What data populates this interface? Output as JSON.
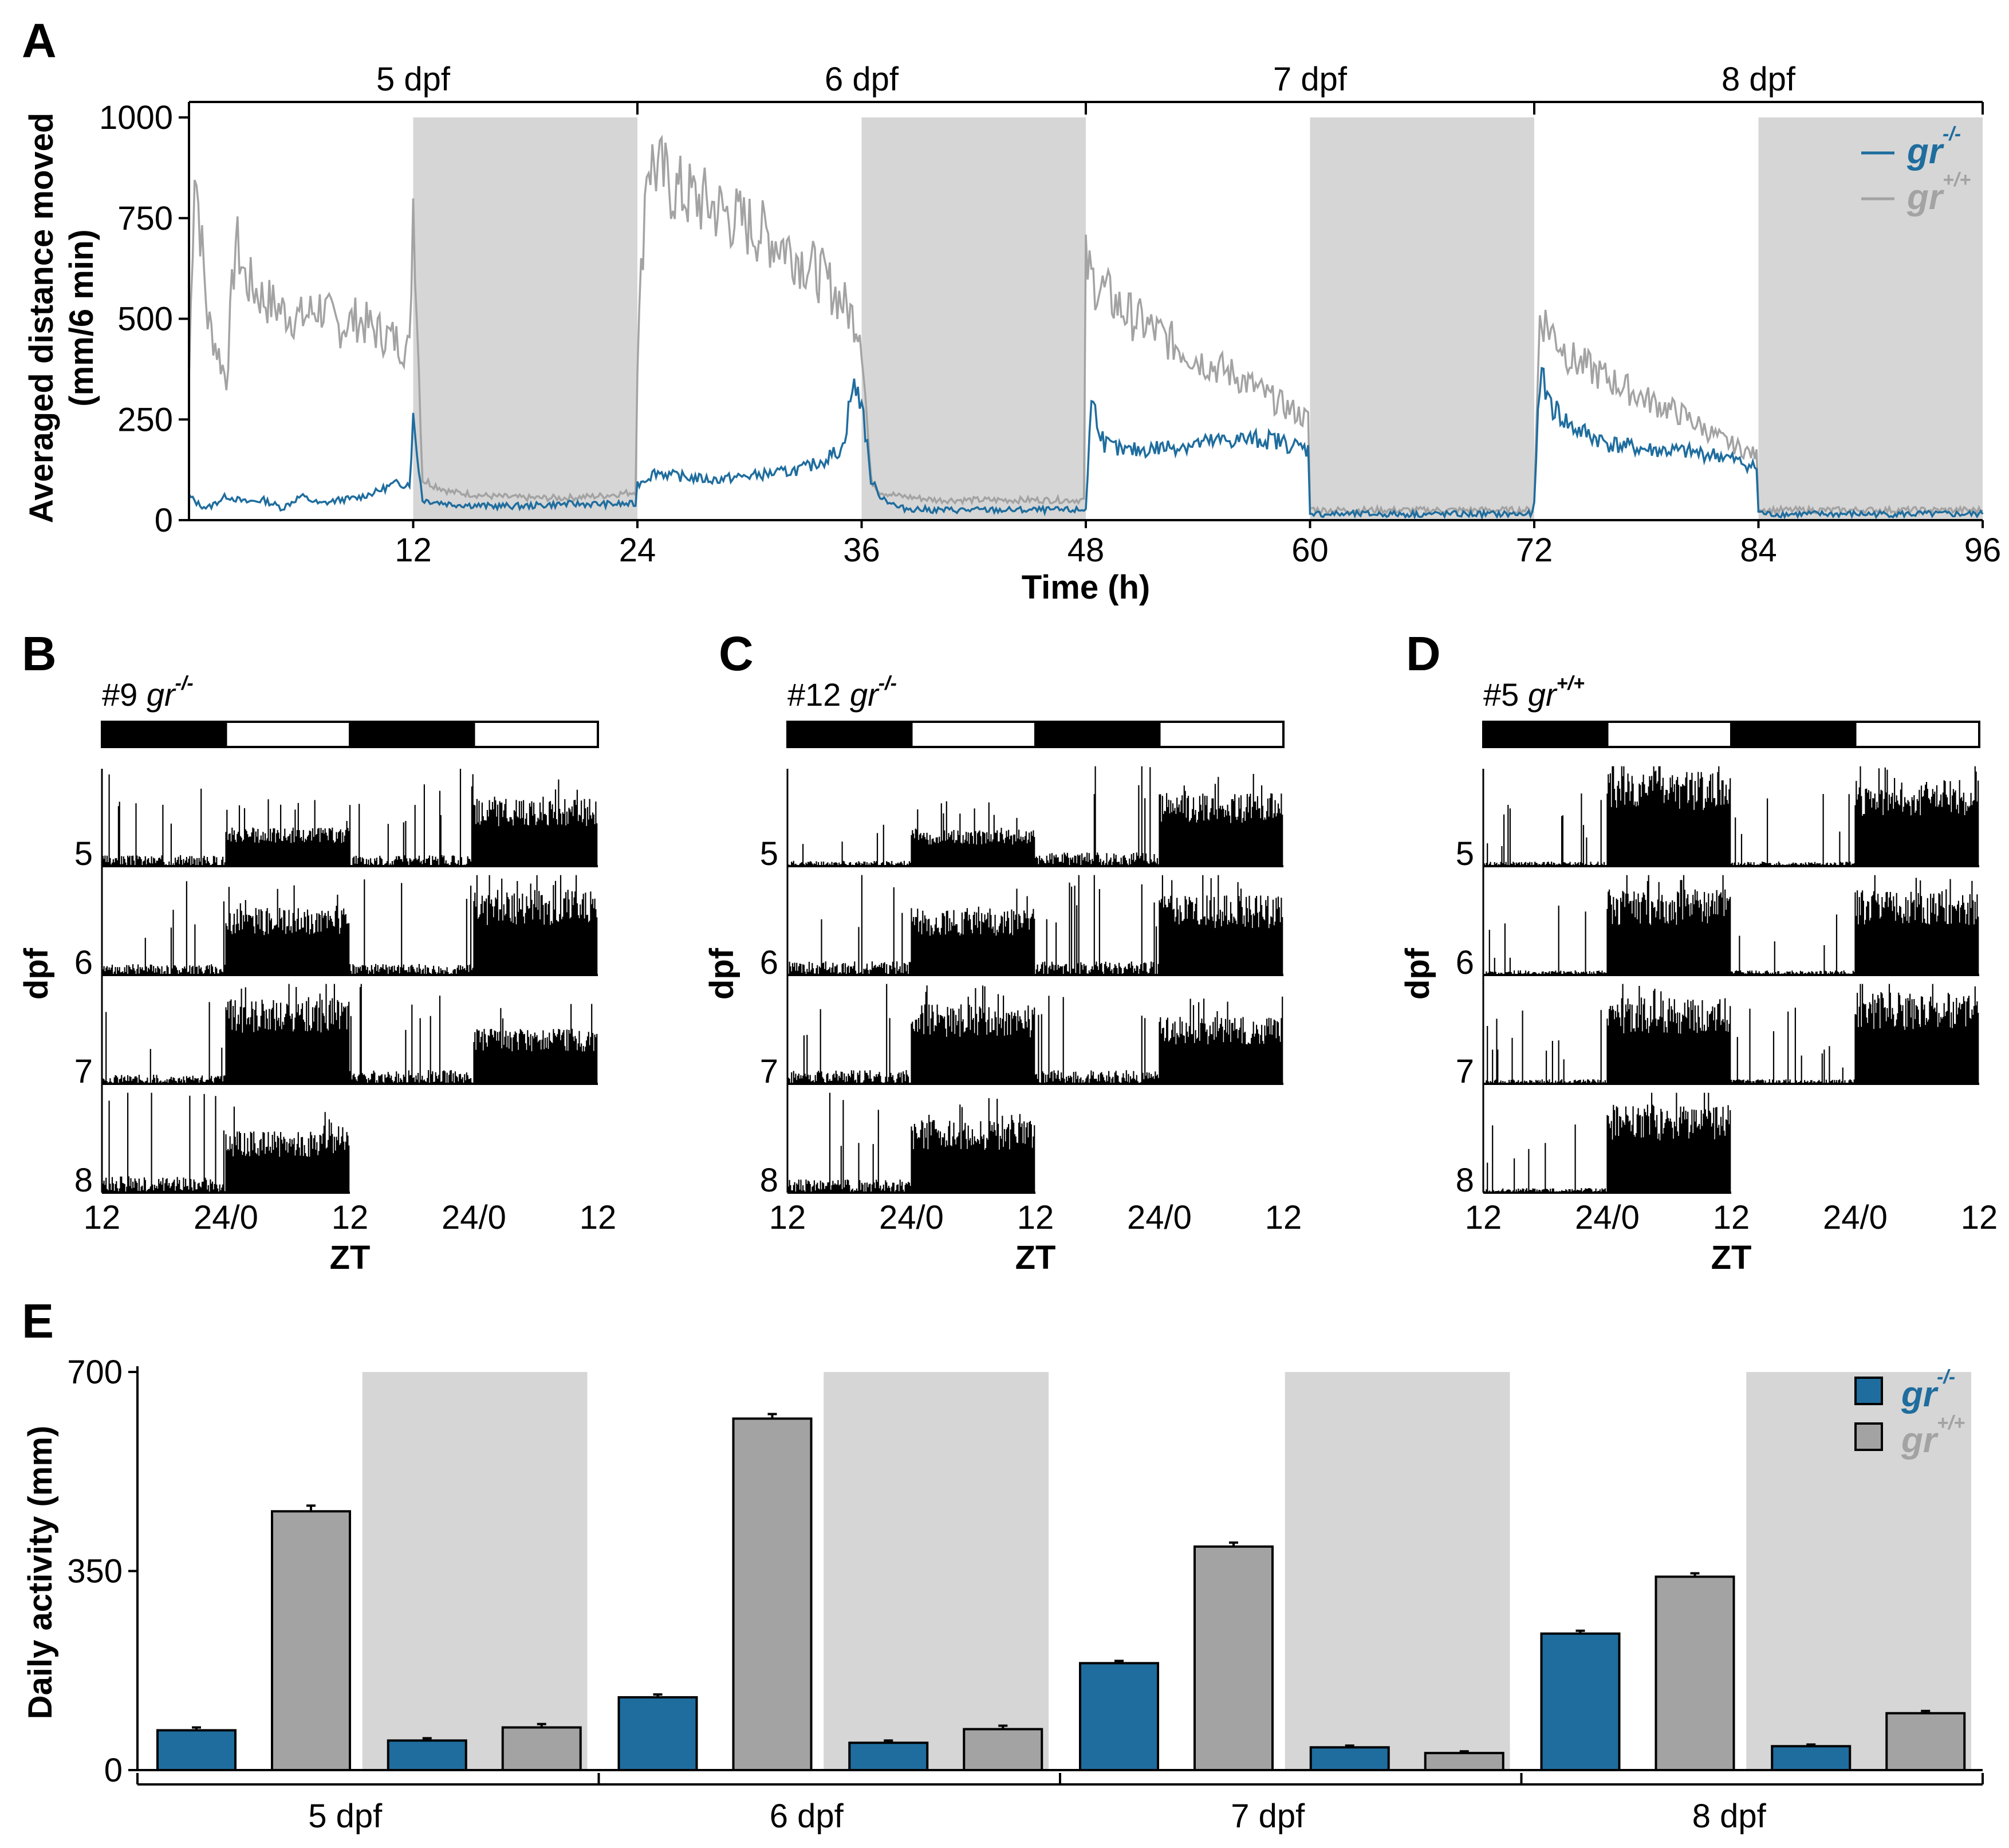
{
  "panel_labels": {
    "A": "A",
    "B": "B",
    "C": "C",
    "D": "D",
    "E": "E"
  },
  "colors": {
    "mutant": "#1f6d9e",
    "wildtype": "#a3a3a3",
    "night": "#d6d6d6",
    "actogram": "#000000"
  },
  "chart_data": [
    {
      "id": "A",
      "type": "line",
      "title_labels": [
        "5 dpf",
        "6 dpf",
        "7 dpf",
        "8 dpf"
      ],
      "xlabel": "Time (h)",
      "ylabel": [
        "Averaged distance moved",
        "(mm/6 min)"
      ],
      "xlim": [
        0,
        96
      ],
      "ylim": [
        0,
        1000
      ],
      "xticks": [
        12,
        24,
        36,
        48,
        60,
        72,
        84,
        96
      ],
      "yticks": [
        0,
        250,
        500,
        750,
        1000
      ],
      "dark_periods": [
        [
          12,
          24
        ],
        [
          36,
          48
        ],
        [
          60,
          72
        ],
        [
          84,
          96
        ]
      ],
      "legend": [
        {
          "label": "gr",
          "sup": "-/-",
          "series": "mutant"
        },
        {
          "label": "gr",
          "sup": "+/+",
          "series": "wildtype"
        }
      ],
      "series": [
        {
          "name": "gr-/-",
          "key": "mutant",
          "x": [
            0,
            0.5,
            1,
            2,
            3,
            4,
            5,
            6,
            7,
            8,
            9,
            10,
            11,
            11.8,
            12,
            12.5,
            14,
            16,
            18,
            20,
            22,
            23.9,
            24,
            25,
            26,
            28,
            30,
            32,
            33,
            34,
            35,
            35.5,
            36,
            36.5,
            37,
            38,
            40,
            42,
            44,
            46,
            47.9,
            48,
            48.3,
            49,
            50,
            52,
            54,
            56,
            58,
            59.9,
            60,
            60.5,
            62,
            64,
            66,
            68,
            70,
            71.9,
            72,
            72.3,
            73,
            74,
            76,
            78,
            80,
            82,
            83.9,
            84,
            84.5,
            86,
            88,
            90,
            92,
            94,
            96
          ],
          "y": [
            60,
            40,
            30,
            60,
            45,
            50,
            30,
            60,
            40,
            50,
            55,
            70,
            90,
            90,
            250,
            50,
            40,
            35,
            35,
            40,
            40,
            40,
            90,
            120,
            110,
            100,
            110,
            120,
            130,
            150,
            180,
            330,
            300,
            100,
            60,
            30,
            25,
            25,
            25,
            25,
            25,
            30,
            300,
            190,
            170,
            180,
            190,
            200,
            200,
            175,
            20,
            15,
            15,
            15,
            15,
            15,
            15,
            15,
            40,
            360,
            280,
            230,
            190,
            175,
            170,
            160,
            130,
            20,
            15,
            15,
            15,
            15,
            15,
            15,
            15
          ]
        },
        {
          "name": "gr+/+",
          "key": "wildtype",
          "x": [
            0,
            0.3,
            1,
            2,
            2.5,
            3,
            4,
            5,
            6,
            7,
            8,
            9,
            10,
            11,
            11.8,
            12,
            12.5,
            14,
            16,
            18,
            20,
            22,
            23.9,
            24,
            24.5,
            26,
            28,
            30,
            32,
            34,
            35,
            35.9,
            36,
            36.5,
            37,
            38,
            40,
            42,
            44,
            46,
            47.9,
            48,
            48.3,
            50,
            52,
            54,
            56,
            58,
            59.9,
            60,
            60.5,
            62,
            64,
            66,
            68,
            70,
            71.9,
            72,
            72.3,
            74,
            76,
            78,
            80,
            82,
            83.9,
            84,
            84.5,
            86,
            88,
            90,
            92,
            94,
            96
          ],
          "y": [
            350,
            900,
            500,
            350,
            700,
            600,
            550,
            520,
            500,
            530,
            480,
            500,
            470,
            450,
            420,
            800,
            100,
            70,
            60,
            55,
            55,
            60,
            70,
            400,
            900,
            820,
            780,
            730,
            680,
            600,
            540,
            480,
            450,
            100,
            70,
            60,
            50,
            50,
            50,
            50,
            50,
            640,
            600,
            520,
            460,
            400,
            360,
            300,
            250,
            30,
            25,
            25,
            25,
            25,
            25,
            25,
            25,
            50,
            510,
            400,
            350,
            300,
            260,
            200,
            160,
            30,
            25,
            25,
            25,
            25,
            25,
            25,
            25
          ]
        }
      ]
    },
    {
      "id": "B",
      "type": "actogram",
      "title": "#9",
      "gene": "gr",
      "sup": "-/-",
      "ylabel": "dpf",
      "row_labels": [
        "5",
        "6",
        "7",
        "8"
      ],
      "xticks": [
        "12",
        "24/0",
        "12",
        "24/0",
        "12"
      ],
      "xlabel": "ZT",
      "light_bar": [
        "dark",
        "light",
        "dark",
        "light"
      ],
      "rows": [
        {
          "dpf": "5",
          "night1": 0.12,
          "day1": 0.32,
          "night2": 0.12,
          "day2": 0.55
        },
        {
          "dpf": "6",
          "night1": 0.12,
          "day1": 0.55,
          "night2": 0.12,
          "day2": 0.7
        },
        {
          "dpf": "7",
          "night1": 0.1,
          "day1": 0.7,
          "night2": 0.15,
          "day2": 0.45
        },
        {
          "dpf": "8",
          "night1": 0.18,
          "day1": 0.5
        }
      ]
    },
    {
      "id": "C",
      "type": "actogram",
      "title": "#12",
      "gene": "gr",
      "sup": "-/-",
      "ylabel": "dpf",
      "row_labels": [
        "5",
        "6",
        "7",
        "8"
      ],
      "xticks": [
        "12",
        "24/0",
        "12",
        "24/0",
        "12"
      ],
      "xlabel": "ZT",
      "light_bar": [
        "dark",
        "light",
        "dark",
        "light"
      ],
      "rows": [
        {
          "dpf": "5",
          "night1": 0.06,
          "day1": 0.3,
          "night2": 0.15,
          "day2": 0.6
        },
        {
          "dpf": "6",
          "night1": 0.15,
          "day1": 0.55,
          "night2": 0.15,
          "day2": 0.65
        },
        {
          "dpf": "7",
          "night1": 0.15,
          "day1": 0.65,
          "night2": 0.15,
          "day2": 0.55
        },
        {
          "dpf": "8",
          "night1": 0.15,
          "day1": 0.6
        }
      ]
    },
    {
      "id": "D",
      "type": "actogram",
      "title": "#5",
      "gene": "gr",
      "sup": "+/+",
      "ylabel": "dpf",
      "row_labels": [
        "5",
        "6",
        "7",
        "8"
      ],
      "xticks": [
        "12",
        "24/0",
        "12",
        "24/0",
        "12"
      ],
      "xlabel": "ZT",
      "light_bar": [
        "dark",
        "light",
        "dark",
        "light"
      ],
      "rows": [
        {
          "dpf": "5",
          "night1": 0.05,
          "day1": 0.78,
          "night2": 0.05,
          "day2": 0.7
        },
        {
          "dpf": "6",
          "night1": 0.05,
          "day1": 0.7,
          "night2": 0.05,
          "day2": 0.7
        },
        {
          "dpf": "7",
          "night1": 0.05,
          "day1": 0.7,
          "night2": 0.05,
          "day2": 0.75
        },
        {
          "dpf": "8",
          "night1": 0.05,
          "day1": 0.72
        }
      ]
    },
    {
      "id": "E",
      "type": "bar",
      "ylabel": "Daily activity (mm)",
      "ylim": [
        0,
        700
      ],
      "yticks": [
        0,
        350,
        700
      ],
      "groups": [
        "5 dpf",
        "6 dpf",
        "7 dpf",
        "8 dpf"
      ],
      "sub_periods": [
        "day",
        "night"
      ],
      "legend": [
        {
          "label": "gr",
          "sup": "-/-",
          "series": "mutant"
        },
        {
          "label": "gr",
          "sup": "+/+",
          "series": "wildtype"
        }
      ],
      "series": [
        {
          "name": "gr-/-",
          "key": "mutant",
          "values": [
            70,
            52,
            128,
            48,
            188,
            40,
            240,
            42
          ],
          "errors": [
            5,
            4,
            5,
            4,
            4,
            3,
            5,
            3
          ]
        },
        {
          "name": "gr+/+",
          "key": "wildtype",
          "values": [
            455,
            75,
            618,
            72,
            393,
            30,
            340,
            100
          ],
          "errors": [
            10,
            6,
            8,
            6,
            7,
            3,
            6,
            4
          ]
        }
      ]
    }
  ]
}
